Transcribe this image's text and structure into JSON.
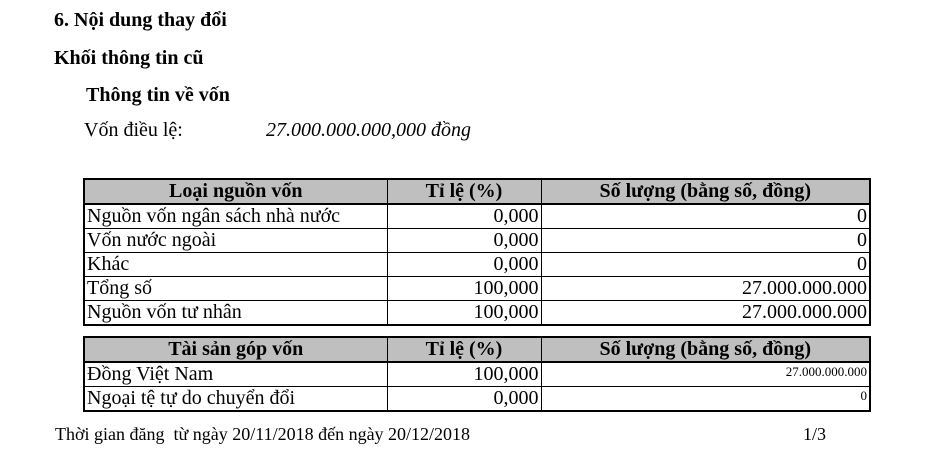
{
  "headings": {
    "section": "6. Nội dung thay đổi",
    "block": "Khối thông tin cũ",
    "subsection": "Thông tin về vốn"
  },
  "charter_capital": {
    "label": "Vốn điều lệ:",
    "value": "27.000.000.000,000 đồng"
  },
  "tables": [
    {
      "name": "capital-sources",
      "headers": [
        "Loại nguồn vốn",
        "Tỉ lệ (%)",
        "Số lượng (bằng số, đồng)"
      ],
      "rows": [
        [
          "Nguồn vốn ngân sách nhà nước",
          "0,000",
          "0"
        ],
        [
          "Vốn nước ngoài",
          "0,000",
          "0"
        ],
        [
          "Khác",
          "0,000",
          "0"
        ],
        [
          "Tổng số",
          "100,000",
          "27.000.000.000"
        ],
        [
          "Nguồn vốn tư nhân",
          "100,000",
          "27.000.000.000"
        ]
      ]
    },
    {
      "name": "contributed-assets",
      "headers": [
        "Tài sản góp vốn",
        "Tỉ lệ (%)",
        "Số lượng (bằng số, đồng)"
      ],
      "rows": [
        [
          "Đồng Việt Nam",
          "100,000",
          "27.000.000.000"
        ],
        [
          "Ngoại tệ tự do chuyển đổi",
          "0,000",
          "0"
        ]
      ]
    }
  ],
  "footer": {
    "duration": "Thời gian đăng  từ ngày 20/11/2018 đến ngày 20/12/2018",
    "page_number": "1/3"
  },
  "colors": {
    "table_header_bg": "#bfbfbf",
    "border": "#000000",
    "text": "#000000",
    "page_bg": "#ffffff"
  }
}
